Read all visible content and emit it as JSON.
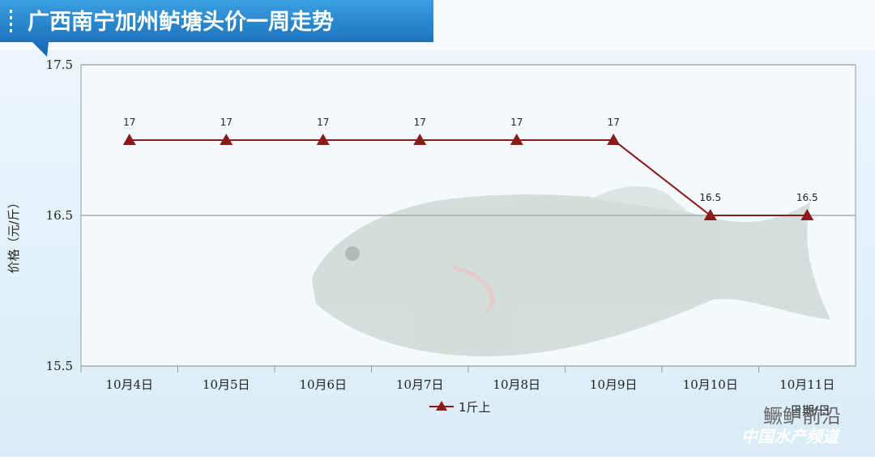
{
  "chart_data": {
    "type": "line",
    "title": "广西南宁加州鲈塘头价一周走势",
    "y_label": "价格（元/斤）",
    "x_label": "日期/日",
    "categories": [
      "10月4日",
      "10月5日",
      "10月6日",
      "10月7日",
      "10月8日",
      "10月9日",
      "10月10日",
      "10月11日"
    ],
    "series": [
      {
        "name": "1斤上",
        "color": "#8b1a1a",
        "values": [
          17,
          17,
          17,
          17,
          17,
          17,
          16.5,
          16.5
        ]
      }
    ],
    "ylim": [
      15.5,
      17.5
    ],
    "yticks": [
      15.5,
      16.5,
      17.5
    ],
    "grid": true,
    "watermark": [
      "鳜鲈前沿",
      "中国水产频道"
    ]
  }
}
